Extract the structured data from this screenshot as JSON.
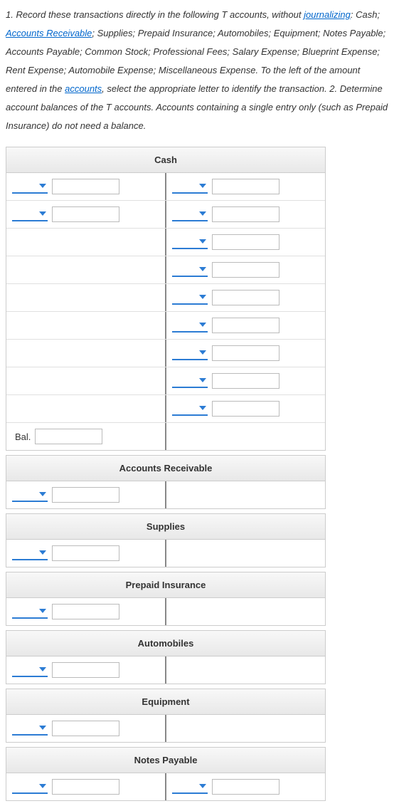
{
  "instructions": {
    "part1a": "1. Record these transactions directly in the following T accounts, without ",
    "link1": "journalizing",
    "part1b": ": Cash; ",
    "link2": "Accounts Receivable",
    "part2": "; Supplies; Prepaid Insurance; Automobiles; Equipment; Notes Payable; Accounts Payable; Common Stock; Professional Fees; Salary Expense; Blueprint Expense; Rent Expense; Automobile Expense; Miscellaneous Expense. To the left of the amount entered in the ",
    "link3": "accounts",
    "part3": ", select the appropriate letter to identify the transaction. 2. Determine account balances of the T accounts. Accounts containing a single entry only (such as Prepaid Insurance) do not need a balance."
  },
  "balLabel": "Bal.",
  "accounts": [
    {
      "title": "Cash",
      "rows": [
        {
          "leftDD": true,
          "leftTxt": true,
          "rightDD": true,
          "rightTxt": true
        },
        {
          "leftDD": true,
          "leftTxt": true,
          "rightDD": true,
          "rightTxt": true
        },
        {
          "leftDD": false,
          "leftTxt": false,
          "rightDD": true,
          "rightTxt": true
        },
        {
          "leftDD": false,
          "leftTxt": false,
          "rightDD": true,
          "rightTxt": true
        },
        {
          "leftDD": false,
          "leftTxt": false,
          "rightDD": true,
          "rightTxt": true
        },
        {
          "leftDD": false,
          "leftTxt": false,
          "rightDD": true,
          "rightTxt": true
        },
        {
          "leftDD": false,
          "leftTxt": false,
          "rightDD": true,
          "rightTxt": true
        },
        {
          "leftDD": false,
          "leftTxt": false,
          "rightDD": true,
          "rightTxt": true
        },
        {
          "leftDD": false,
          "leftTxt": false,
          "rightDD": true,
          "rightTxt": true
        }
      ],
      "balanceRow": true
    },
    {
      "title": "Accounts Receivable",
      "rows": [
        {
          "leftDD": true,
          "leftTxt": true,
          "rightDD": false,
          "rightTxt": false
        }
      ],
      "balanceRow": false
    },
    {
      "title": "Supplies",
      "rows": [
        {
          "leftDD": true,
          "leftTxt": true,
          "rightDD": false,
          "rightTxt": false
        }
      ],
      "balanceRow": false
    },
    {
      "title": "Prepaid Insurance",
      "rows": [
        {
          "leftDD": true,
          "leftTxt": true,
          "rightDD": false,
          "rightTxt": false
        }
      ],
      "balanceRow": false
    },
    {
      "title": "Automobiles",
      "rows": [
        {
          "leftDD": true,
          "leftTxt": true,
          "rightDD": false,
          "rightTxt": false
        }
      ],
      "balanceRow": false
    },
    {
      "title": "Equipment",
      "rows": [
        {
          "leftDD": true,
          "leftTxt": true,
          "rightDD": false,
          "rightTxt": false
        }
      ],
      "balanceRow": false
    },
    {
      "title": "Notes Payable",
      "rows": [
        {
          "leftDD": true,
          "leftTxt": true,
          "rightDD": true,
          "rightTxt": true
        }
      ],
      "balanceRow": false
    }
  ]
}
